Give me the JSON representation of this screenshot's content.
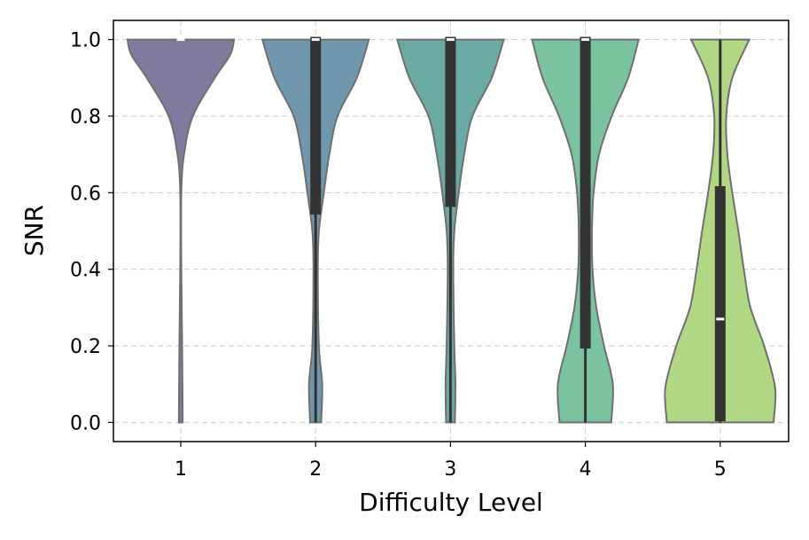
{
  "chart_data": {
    "type": "violin",
    "xlabel": "Difficulty Level",
    "ylabel": "SNR",
    "ylim": [
      -0.05,
      1.05
    ],
    "yticks": [
      "0.0",
      "0.2",
      "0.4",
      "0.6",
      "0.8",
      "1.0"
    ],
    "ytick_values": [
      0.0,
      0.2,
      0.4,
      0.6,
      0.8,
      1.0
    ],
    "grid": true,
    "categories": [
      "1",
      "2",
      "3",
      "4",
      "5"
    ],
    "violins": [
      {
        "category": "1",
        "color": "#7f7b9e",
        "box": {
          "q1": 1.0,
          "median": 1.0,
          "q3": 1.0,
          "whisker_low": 1.0,
          "whisker_high": 1.0
        },
        "density": [
          [
            0.0,
            0.035
          ],
          [
            0.2,
            0.025
          ],
          [
            0.4,
            0.01
          ],
          [
            0.6,
            0.01
          ],
          [
            0.7,
            0.06
          ],
          [
            0.8,
            0.22
          ],
          [
            0.9,
            0.62
          ],
          [
            0.96,
            0.9
          ],
          [
            1.0,
            0.97
          ]
        ]
      },
      {
        "category": "2",
        "color": "#6f97ad",
        "box": {
          "q1": 0.55,
          "median": 1.0,
          "q3": 1.0,
          "whisker_low": 0.0,
          "whisker_high": 1.0
        },
        "density": [
          [
            0.0,
            0.1
          ],
          [
            0.1,
            0.12
          ],
          [
            0.2,
            0.06
          ],
          [
            0.4,
            0.04
          ],
          [
            0.5,
            0.06
          ],
          [
            0.6,
            0.15
          ],
          [
            0.7,
            0.25
          ],
          [
            0.8,
            0.4
          ],
          [
            0.9,
            0.75
          ],
          [
            1.0,
            0.97
          ]
        ]
      },
      {
        "category": "3",
        "color": "#6aa9a4",
        "box": {
          "q1": 0.57,
          "median": 1.0,
          "q3": 1.0,
          "whisker_low": 0.0,
          "whisker_high": 1.0
        },
        "density": [
          [
            0.0,
            0.08
          ],
          [
            0.1,
            0.09
          ],
          [
            0.2,
            0.07
          ],
          [
            0.4,
            0.05
          ],
          [
            0.5,
            0.07
          ],
          [
            0.6,
            0.15
          ],
          [
            0.7,
            0.25
          ],
          [
            0.8,
            0.4
          ],
          [
            0.9,
            0.75
          ],
          [
            1.0,
            0.97
          ]
        ]
      },
      {
        "category": "4",
        "color": "#7bc29f",
        "box": {
          "q1": 0.2,
          "median": 1.0,
          "q3": 1.0,
          "whisker_low": 0.0,
          "whisker_high": 1.0
        },
        "density": [
          [
            0.0,
            0.47
          ],
          [
            0.1,
            0.5
          ],
          [
            0.2,
            0.34
          ],
          [
            0.3,
            0.2
          ],
          [
            0.4,
            0.13
          ],
          [
            0.5,
            0.12
          ],
          [
            0.6,
            0.15
          ],
          [
            0.7,
            0.25
          ],
          [
            0.8,
            0.48
          ],
          [
            0.9,
            0.78
          ],
          [
            1.0,
            0.97
          ]
        ]
      },
      {
        "category": "5",
        "color": "#b0d884",
        "box": {
          "q1": 0.01,
          "median": 0.27,
          "q3": 0.61,
          "whisker_low": 0.0,
          "whisker_high": 1.0
        },
        "density": [
          [
            0.0,
            0.97
          ],
          [
            0.05,
            1.0
          ],
          [
            0.1,
            0.99
          ],
          [
            0.2,
            0.8
          ],
          [
            0.3,
            0.55
          ],
          [
            0.4,
            0.43
          ],
          [
            0.5,
            0.33
          ],
          [
            0.6,
            0.22
          ],
          [
            0.7,
            0.13
          ],
          [
            0.8,
            0.11
          ],
          [
            0.9,
            0.22
          ],
          [
            1.0,
            0.53
          ]
        ]
      }
    ]
  }
}
